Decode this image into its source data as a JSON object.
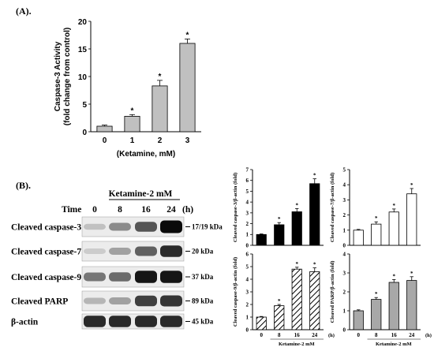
{
  "panel_a_label": "(A).",
  "panel_b_label": "(B).",
  "chart_data": [
    {
      "id": "caspase3_activity",
      "type": "bar",
      "categories": [
        "0",
        "1",
        "2",
        "3"
      ],
      "values": [
        1.0,
        2.8,
        8.3,
        16.0
      ],
      "errors": [
        0.2,
        0.3,
        1.0,
        0.8
      ],
      "significant": [
        "",
        "*",
        "*",
        "*"
      ],
      "title": "",
      "xlabel": "(Ketamine, mM)",
      "ylabel": "Caspase-3 Activity\n(fold change from control)",
      "ylim": [
        0,
        20
      ],
      "yticks": [
        0,
        5,
        10,
        15,
        20
      ],
      "bar_fill": "#c0c0c0"
    },
    {
      "id": "cleaved_caspase3_ratio",
      "type": "bar",
      "categories": [
        "0",
        "8",
        "16",
        "24"
      ],
      "values": [
        1.0,
        1.9,
        3.1,
        5.7
      ],
      "errors": [
        0.05,
        0.2,
        0.3,
        0.45
      ],
      "significant": [
        "",
        "*",
        "*",
        "*"
      ],
      "ylabel": "Cleaved caspase-3/β-actin (fold)",
      "ylim": [
        0,
        7
      ],
      "yticks": [
        0,
        1,
        2,
        3,
        4,
        5,
        6,
        7
      ],
      "bar_fill": "#000000",
      "pattern": "solid"
    },
    {
      "id": "cleaved_caspase7_ratio",
      "type": "bar",
      "categories": [
        "0",
        "8",
        "16",
        "24"
      ],
      "values": [
        1.0,
        1.4,
        2.2,
        3.4
      ],
      "errors": [
        0.05,
        0.15,
        0.2,
        0.35
      ],
      "significant": [
        "",
        "*",
        "*",
        "*"
      ],
      "ylabel": "Cleaved caspase-7/β-actin (fold)",
      "ylim": [
        0,
        5
      ],
      "yticks": [
        0,
        1,
        2,
        3,
        4,
        5
      ],
      "bar_fill": "#ffffff",
      "pattern": "open"
    },
    {
      "id": "cleaved_caspase9_ratio",
      "type": "bar",
      "categories": [
        "0",
        "8",
        "16",
        "24"
      ],
      "values": [
        1.0,
        1.9,
        4.8,
        4.6
      ],
      "errors": [
        0.05,
        0.1,
        0.15,
        0.3
      ],
      "significant": [
        "",
        "*",
        "*",
        "*"
      ],
      "ylabel": "Cleaved caspase-9/β-actin (fold)",
      "ylim": [
        0,
        6
      ],
      "yticks": [
        0,
        1,
        2,
        3,
        4,
        5,
        6
      ],
      "xtitle": "Ketamine-2 mM",
      "xunit": "(h)",
      "bar_fill": "#ffffff",
      "pattern": "hatch"
    },
    {
      "id": "cleaved_parp_ratio",
      "type": "bar",
      "categories": [
        "0",
        "8",
        "16",
        "24"
      ],
      "values": [
        1.0,
        1.6,
        2.5,
        2.6
      ],
      "errors": [
        0.05,
        0.1,
        0.15,
        0.2
      ],
      "significant": [
        "",
        "*",
        "*",
        "*"
      ],
      "ylabel": "Cleaved PARP/β-actin (fold)",
      "ylim": [
        0,
        4
      ],
      "yticks": [
        0,
        1,
        2,
        3,
        4
      ],
      "xtitle": "Ketamine-2 mM",
      "xunit": "(h)",
      "bar_fill": "#a8a8a8",
      "pattern": "solid"
    }
  ],
  "blot": {
    "treatment": "Ketamine-2 mM",
    "time_label": "Time",
    "time_unit": "(h)",
    "lanes": [
      "0",
      "8",
      "16",
      "24"
    ],
    "rows": [
      {
        "name": "Cleaved caspase-3",
        "size": "17/19 kDa",
        "intensity": [
          0.15,
          0.4,
          0.65,
          1.0
        ]
      },
      {
        "name": "Cleaved caspase-7",
        "size": "20 kDa",
        "intensity": [
          0.1,
          0.3,
          0.6,
          0.85
        ]
      },
      {
        "name": "Cleaved caspase-9",
        "size": "37 kDa",
        "intensity": [
          0.5,
          0.55,
          0.95,
          0.95
        ]
      },
      {
        "name": "Cleaved PARP",
        "size": "89 kDa",
        "intensity": [
          0.2,
          0.3,
          0.75,
          0.8
        ]
      },
      {
        "name": "β-actin",
        "size": "45 kDa",
        "intensity": [
          0.85,
          0.85,
          0.85,
          0.85
        ]
      }
    ]
  }
}
